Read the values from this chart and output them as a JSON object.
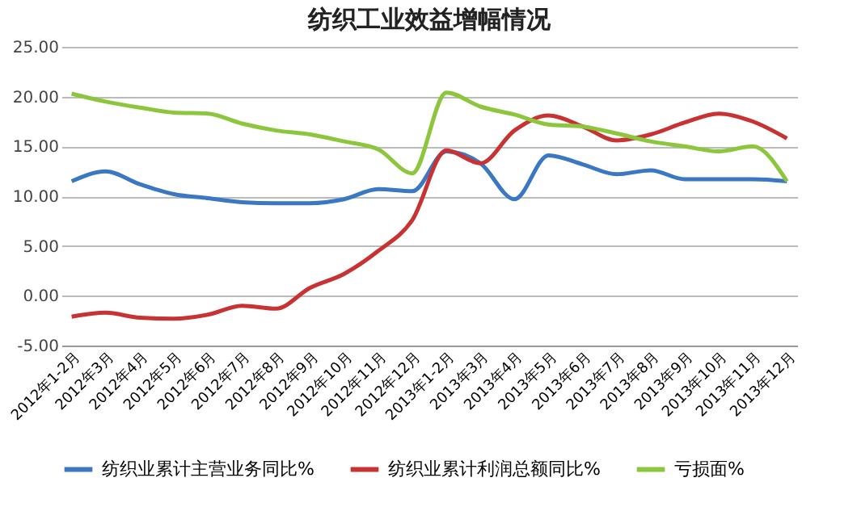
{
  "chart_data": {
    "type": "line",
    "title": "纺织工业效益增幅情况",
    "categories": [
      "2012年1-2月",
      "2012年3月",
      "2012年4月",
      "2012年5月",
      "2012年6月",
      "2012年7月",
      "2012年8月",
      "2012年9月",
      "2012年10月",
      "2012年11月",
      "2012年12月",
      "2013年1-2月",
      "2013年3月",
      "2013年4月",
      "2013年5月",
      "2013年6月",
      "2013年7月",
      "2013年8月",
      "2013年9月",
      "2013年10月",
      "2013年11月",
      "2013年12月"
    ],
    "series": [
      {
        "name": "纺织业累计主营业务同比%",
        "color": "#3a78c3",
        "values": [
          11.5,
          12.5,
          11.2,
          10.2,
          9.8,
          9.4,
          9.3,
          9.3,
          9.7,
          10.7,
          10.5,
          14.5,
          13.3,
          9.7,
          14.1,
          13.2,
          12.2,
          12.6,
          11.7,
          11.7,
          11.7,
          11.5
        ]
      },
      {
        "name": "纺织业累计利润总额同比%",
        "color": "#c83232",
        "values": [
          -2.1,
          -1.7,
          -2.2,
          -2.3,
          -1.9,
          -1.0,
          -1.3,
          0.8,
          2.2,
          4.5,
          7.6,
          14.6,
          13.3,
          16.6,
          18.1,
          17.0,
          15.6,
          16.2,
          17.4,
          18.3,
          17.5,
          15.8
        ]
      },
      {
        "name": "亏损面%",
        "color": "#8cc63c",
        "values": [
          20.3,
          19.5,
          18.9,
          18.4,
          18.3,
          17.3,
          16.6,
          16.2,
          15.5,
          14.7,
          12.3,
          20.4,
          19.0,
          18.2,
          17.2,
          17.0,
          16.3,
          15.5,
          15.0,
          14.5,
          15.0,
          11.5
        ]
      }
    ],
    "ylim": [
      -5,
      25
    ],
    "yticks": [
      {
        "value": -5,
        "label": "-5.00"
      },
      {
        "value": 0,
        "label": "0.00"
      },
      {
        "value": 5,
        "label": "5.00"
      },
      {
        "value": 10,
        "label": "10.00"
      },
      {
        "value": 15,
        "label": "15.00"
      },
      {
        "value": 20,
        "label": "20.00"
      },
      {
        "value": 25,
        "label": "25.00"
      }
    ],
    "grid": "y",
    "legend": "bottom",
    "marker": "none",
    "line_style": "solid"
  }
}
